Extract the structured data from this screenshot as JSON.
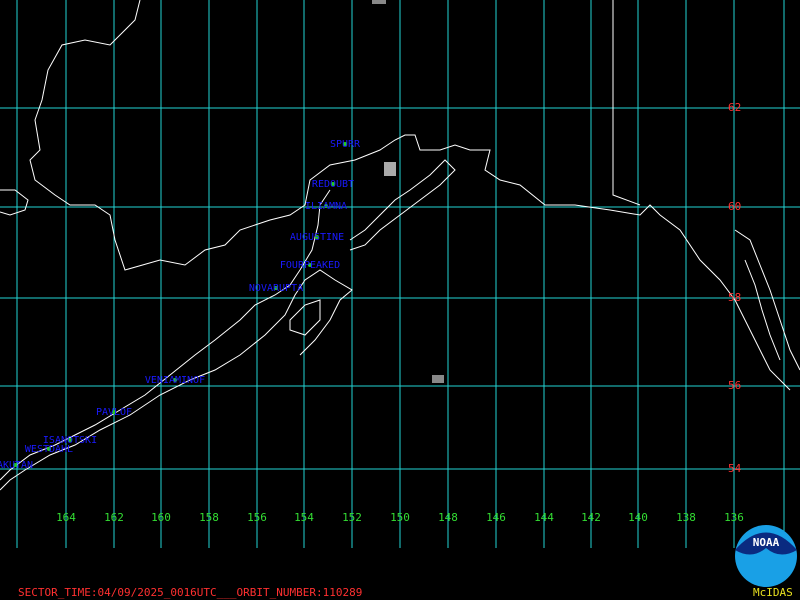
{
  "volcanoes": [
    "SPURR",
    "REDOUBT",
    "ILIAMNA",
    "AUGUSTINE",
    "FOURPEAKED",
    "NOVARUPTA",
    "VENIAMINOF",
    "PAVLOF",
    "ISANOTSKI",
    "WESTDAHL",
    "AKUTAN"
  ],
  "latitude_labels": [
    "62",
    "60",
    "58",
    "56",
    "54"
  ],
  "longitude_labels": [
    "164",
    "162",
    "160",
    "158",
    "156",
    "154",
    "152",
    "150",
    "148",
    "146",
    "144",
    "142",
    "140",
    "138",
    "136"
  ],
  "footer": "SECTOR_TIME:04/09/2025_0016UTC___ORBIT_NUMBER:110289",
  "logo": {
    "text": "NOAA",
    "caption": "McIDAS"
  }
}
